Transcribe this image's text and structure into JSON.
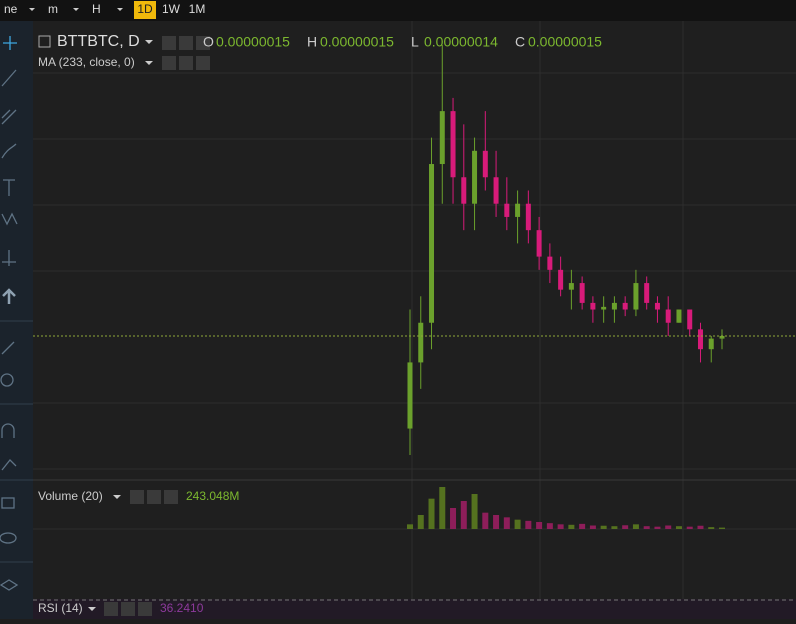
{
  "toolbar": {
    "buttons": [
      "ne",
      "m",
      "H",
      "1D",
      "1W",
      "1M"
    ],
    "active": 3
  },
  "chart_data": {
    "type": "candlestick",
    "symbol": "BTTBTC, D",
    "ohlc_labels": [
      "O",
      "H",
      "L",
      "C"
    ],
    "ohlc_values": [
      "0.00000015",
      "0.00000015",
      "0.00000014",
      "0.00000015"
    ],
    "indicator": "MA (233, close, 0)",
    "up_color": "#6ba12c",
    "down_color": "#d81b7a",
    "candles": [
      {
        "o": 8e-08,
        "h": 1.7e-07,
        "l": 6e-08,
        "c": 1.3e-07
      },
      {
        "o": 1.3e-07,
        "h": 1.8e-07,
        "l": 1.1e-07,
        "c": 1.6e-07
      },
      {
        "o": 1.6e-07,
        "h": 3e-07,
        "l": 1.4e-07,
        "c": 2.8e-07
      },
      {
        "o": 2.8e-07,
        "h": 3.7e-07,
        "l": 2.5e-07,
        "c": 3.2e-07
      },
      {
        "o": 3.2e-07,
        "h": 3.3e-07,
        "l": 2.5e-07,
        "c": 2.7e-07
      },
      {
        "o": 2.7e-07,
        "h": 3.1e-07,
        "l": 2.3e-07,
        "c": 2.5e-07
      },
      {
        "o": 2.5e-07,
        "h": 3e-07,
        "l": 2.3e-07,
        "c": 2.9e-07
      },
      {
        "o": 2.9e-07,
        "h": 3.2e-07,
        "l": 2.6e-07,
        "c": 2.7e-07
      },
      {
        "o": 2.7e-07,
        "h": 2.9e-07,
        "l": 2.4e-07,
        "c": 2.5e-07
      },
      {
        "o": 2.5e-07,
        "h": 2.7e-07,
        "l": 2.3e-07,
        "c": 2.4e-07
      },
      {
        "o": 2.4e-07,
        "h": 2.6e-07,
        "l": 2.2e-07,
        "c": 2.5e-07
      },
      {
        "o": 2.5e-07,
        "h": 2.6e-07,
        "l": 2.2e-07,
        "c": 2.3e-07
      },
      {
        "o": 2.3e-07,
        "h": 2.4e-07,
        "l": 2e-07,
        "c": 2.1e-07
      },
      {
        "o": 2.1e-07,
        "h": 2.2e-07,
        "l": 1.9e-07,
        "c": 2e-07
      },
      {
        "o": 2e-07,
        "h": 2.1e-07,
        "l": 1.8e-07,
        "c": 1.85e-07
      },
      {
        "o": 1.85e-07,
        "h": 2e-07,
        "l": 1.7e-07,
        "c": 1.9e-07
      },
      {
        "o": 1.9e-07,
        "h": 1.95e-07,
        "l": 1.7e-07,
        "c": 1.75e-07
      },
      {
        "o": 1.75e-07,
        "h": 1.8e-07,
        "l": 1.6e-07,
        "c": 1.7e-07
      },
      {
        "o": 1.7e-07,
        "h": 1.8e-07,
        "l": 1.6e-07,
        "c": 1.72e-07
      },
      {
        "o": 1.7e-07,
        "h": 1.8e-07,
        "l": 1.6e-07,
        "c": 1.75e-07
      },
      {
        "o": 1.75e-07,
        "h": 1.8e-07,
        "l": 1.65e-07,
        "c": 1.7e-07
      },
      {
        "o": 1.7e-07,
        "h": 2e-07,
        "l": 1.65e-07,
        "c": 1.9e-07
      },
      {
        "o": 1.9e-07,
        "h": 1.95e-07,
        "l": 1.7e-07,
        "c": 1.75e-07
      },
      {
        "o": 1.75e-07,
        "h": 1.8e-07,
        "l": 1.6e-07,
        "c": 1.7e-07
      },
      {
        "o": 1.7e-07,
        "h": 1.8e-07,
        "l": 1.5e-07,
        "c": 1.6e-07
      },
      {
        "o": 1.6e-07,
        "h": 1.7e-07,
        "l": 1.6e-07,
        "c": 1.7e-07
      },
      {
        "o": 1.7e-07,
        "h": 1.7e-07,
        "l": 1.5e-07,
        "c": 1.55e-07
      },
      {
        "o": 1.55e-07,
        "h": 1.6e-07,
        "l": 1.3e-07,
        "c": 1.4e-07
      },
      {
        "o": 1.4e-07,
        "h": 1.5e-07,
        "l": 1.3e-07,
        "c": 1.48e-07
      },
      {
        "o": 1.48e-07,
        "h": 1.55e-07,
        "l": 1.4e-07,
        "c": 1.5e-07
      }
    ],
    "volume_label": "Volume (20)",
    "volume_value": "243.048M",
    "volumes": [
      20,
      60,
      130,
      180,
      90,
      120,
      150,
      70,
      60,
      50,
      40,
      35,
      30,
      25,
      20,
      18,
      22,
      15,
      14,
      12,
      16,
      20,
      12,
      10,
      15,
      12,
      10,
      14,
      8,
      6
    ],
    "rsi_label": "RSI (14)",
    "rsi_value": "36.2410"
  }
}
